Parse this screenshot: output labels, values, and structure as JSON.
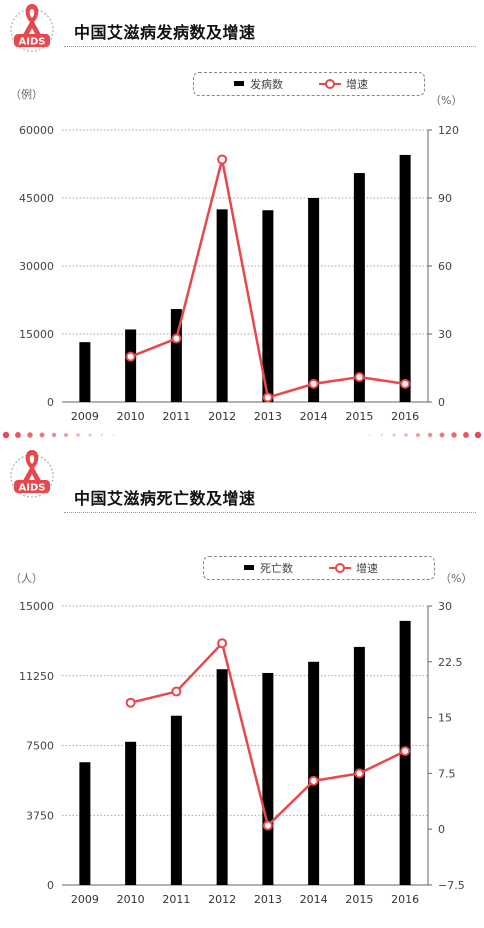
{
  "charts": [
    {
      "title": "中国艾滋病发病数及增速",
      "logo_text": "AIDS",
      "left_unit": "（例）",
      "right_unit": "（%）",
      "legend_bar": "发病数",
      "legend_line": "增速"
    },
    {
      "title": "中国艾滋病死亡数及增速",
      "logo_text": "AIDS",
      "left_unit": "（人）",
      "right_unit": "（%）",
      "legend_bar": "死亡数",
      "legend_line": "增速"
    }
  ],
  "colors": {
    "bar": "#000000",
    "line": "#e8474c",
    "ribbon": "#e8474c"
  },
  "icons": [
    "aids-ribbon-icon",
    "aids-ribbon-icon"
  ],
  "chart_data": [
    {
      "type": "bar",
      "title": "中国艾滋病发病数及增速",
      "categories": [
        "2009",
        "2010",
        "2011",
        "2012",
        "2013",
        "2014",
        "2015",
        "2016"
      ],
      "series": [
        {
          "name": "发病数",
          "axis": "left",
          "type": "bar",
          "values": [
            13200,
            16000,
            20500,
            42500,
            42300,
            45000,
            50500,
            54500
          ]
        },
        {
          "name": "增速",
          "axis": "right",
          "type": "line",
          "values": [
            null,
            20,
            28,
            107,
            2,
            8,
            11,
            8
          ]
        }
      ],
      "ylim_left": [
        0,
        60000
      ],
      "ylim_right": [
        0,
        120
      ],
      "yticks_left": [
        "0",
        "15000",
        "30000",
        "45000",
        "60000"
      ],
      "yticks_right": [
        "0",
        "30",
        "60",
        "90",
        "120"
      ],
      "grid": "dotted horizontal",
      "legend": "top"
    },
    {
      "type": "bar",
      "title": "中国艾滋病死亡数及增速",
      "categories": [
        "2009",
        "2010",
        "2011",
        "2012",
        "2013",
        "2014",
        "2015",
        "2016"
      ],
      "series": [
        {
          "name": "死亡数",
          "axis": "left",
          "type": "bar",
          "values": [
            6600,
            7700,
            9100,
            11600,
            11400,
            12000,
            12800,
            14200
          ]
        },
        {
          "name": "增速",
          "axis": "right",
          "type": "line",
          "values": [
            null,
            17,
            18.5,
            25,
            0.5,
            6.5,
            7.5,
            10.5
          ]
        }
      ],
      "ylim_left": [
        0,
        15000
      ],
      "ylim_right": [
        -7.5,
        30
      ],
      "yticks_left": [
        "0",
        "3750",
        "7500",
        "11250",
        "15000"
      ],
      "yticks_right": [
        "−7.5",
        "0",
        "7.5",
        "15",
        "22.5",
        "30"
      ],
      "grid": "dotted horizontal",
      "legend": "top"
    }
  ]
}
